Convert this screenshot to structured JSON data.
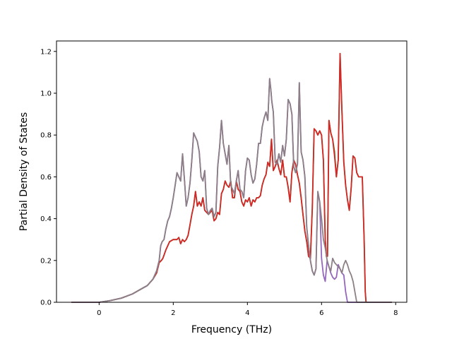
{
  "chart_data": {
    "type": "line",
    "title": "",
    "xlabel": "Frequency (THz)",
    "ylabel": "Partial Density of States",
    "xlim": [
      -1.15,
      8.3
    ],
    "ylim": [
      0.0,
      1.25
    ],
    "xticks": [
      0,
      2,
      4,
      6,
      8
    ],
    "yticks": [
      0.0,
      0.2,
      0.4,
      0.6,
      0.8,
      1.0,
      1.2
    ],
    "xtick_labels": [
      "0",
      "2",
      "4",
      "6",
      "8"
    ],
    "ytick_labels": [
      "0.0",
      "0.2",
      "0.4",
      "0.6",
      "0.8",
      "1.0",
      "1.2"
    ],
    "grid": false,
    "legend": "none",
    "series": [
      {
        "color": "#2ca02c",
        "x": [
          -0.75,
          0.0,
          0.3,
          0.6,
          0.9,
          1.1,
          1.3,
          1.45,
          1.55,
          1.62,
          1.68,
          1.72,
          1.76,
          1.8,
          1.9,
          2.0,
          2.1,
          2.15,
          2.2,
          2.25,
          2.3,
          2.35,
          2.4,
          2.45,
          2.5,
          2.55,
          2.6,
          2.65,
          2.7,
          2.75,
          2.8,
          2.85,
          2.9,
          2.95,
          3.0,
          3.05,
          3.1,
          3.15,
          3.2,
          3.25,
          3.3,
          3.35,
          3.4,
          3.45,
          3.5,
          3.55,
          3.6,
          3.65,
          3.7,
          3.75,
          3.8,
          3.85,
          3.9,
          3.95,
          4.0,
          4.05,
          4.1,
          4.15,
          4.2,
          4.25,
          4.3,
          4.35,
          4.4,
          4.45,
          4.5,
          4.55,
          4.6,
          4.65,
          4.7,
          4.75,
          4.8,
          4.85,
          4.9,
          4.95,
          5.0,
          5.05,
          5.1,
          5.15,
          5.2,
          5.25,
          5.3,
          5.35,
          5.4,
          5.45,
          5.5,
          5.55,
          5.6,
          5.65,
          5.7,
          5.75,
          5.8,
          5.85,
          5.9,
          5.95,
          6.0,
          6.05,
          6.1,
          6.13,
          6.16,
          6.2,
          6.25,
          6.3,
          6.35,
          6.4,
          6.45,
          6.5,
          6.55,
          6.6,
          6.65,
          6.7,
          6.75,
          6.8,
          6.85,
          6.9,
          6.95,
          7.0,
          7.05,
          7.1,
          7.15,
          7.18,
          7.2,
          7.25,
          7.5,
          7.9
        ],
        "y": [
          0.0,
          0.0,
          0.008,
          0.02,
          0.04,
          0.06,
          0.08,
          0.11,
          0.14,
          0.19,
          0.2,
          0.21,
          0.23,
          0.25,
          0.29,
          0.3,
          0.3,
          0.31,
          0.28,
          0.3,
          0.29,
          0.3,
          0.32,
          0.37,
          0.42,
          0.46,
          0.53,
          0.46,
          0.48,
          0.46,
          0.5,
          0.44,
          0.43,
          0.42,
          0.43,
          0.44,
          0.39,
          0.4,
          0.43,
          0.42,
          0.52,
          0.54,
          0.58,
          0.56,
          0.55,
          0.58,
          0.5,
          0.5,
          0.58,
          0.54,
          0.53,
          0.48,
          0.46,
          0.49,
          0.48,
          0.5,
          0.46,
          0.49,
          0.48,
          0.5,
          0.5,
          0.51,
          0.56,
          0.59,
          0.61,
          0.67,
          0.65,
          0.78,
          0.63,
          0.65,
          0.68,
          0.64,
          0.61,
          0.68,
          0.6,
          0.6,
          0.55,
          0.48,
          0.62,
          0.68,
          0.66,
          0.61,
          0.57,
          0.5,
          0.42,
          0.34,
          0.29,
          0.22,
          0.21,
          0.45,
          0.83,
          0.82,
          0.8,
          0.82,
          0.8,
          0.68,
          0.3,
          0.22,
          0.22,
          0.87,
          0.81,
          0.78,
          0.72,
          0.6,
          0.68,
          1.19,
          0.92,
          0.67,
          0.56,
          0.49,
          0.44,
          0.55,
          0.7,
          0.69,
          0.62,
          0.6,
          0.6,
          0.6,
          0.3,
          0.05,
          0.0,
          0.0,
          0.0,
          0.0
        ]
      },
      {
        "color": "#d62728",
        "x": [
          -0.75,
          0.0,
          0.3,
          0.6,
          0.9,
          1.1,
          1.3,
          1.45,
          1.55,
          1.62,
          1.68,
          1.72,
          1.76,
          1.8,
          1.9,
          2.0,
          2.1,
          2.15,
          2.2,
          2.25,
          2.3,
          2.35,
          2.4,
          2.45,
          2.5,
          2.55,
          2.6,
          2.65,
          2.7,
          2.75,
          2.8,
          2.85,
          2.9,
          2.95,
          3.0,
          3.05,
          3.1,
          3.15,
          3.2,
          3.25,
          3.3,
          3.35,
          3.4,
          3.45,
          3.5,
          3.55,
          3.6,
          3.65,
          3.7,
          3.75,
          3.8,
          3.85,
          3.9,
          3.95,
          4.0,
          4.05,
          4.1,
          4.15,
          4.2,
          4.25,
          4.3,
          4.35,
          4.4,
          4.45,
          4.5,
          4.55,
          4.6,
          4.65,
          4.7,
          4.75,
          4.8,
          4.85,
          4.9,
          4.95,
          5.0,
          5.05,
          5.1,
          5.15,
          5.2,
          5.25,
          5.3,
          5.35,
          5.4,
          5.45,
          5.5,
          5.55,
          5.6,
          5.65,
          5.7,
          5.75,
          5.8,
          5.85,
          5.9,
          5.95,
          6.0,
          6.05,
          6.1,
          6.13,
          6.16,
          6.2,
          6.25,
          6.3,
          6.35,
          6.4,
          6.45,
          6.5,
          6.55,
          6.6,
          6.65,
          6.7,
          6.75,
          6.8,
          6.85,
          6.9,
          6.95,
          7.0,
          7.05,
          7.1,
          7.15,
          7.18,
          7.2,
          7.25,
          7.5,
          7.9
        ],
        "y": [
          0.0,
          0.0,
          0.008,
          0.02,
          0.04,
          0.06,
          0.08,
          0.11,
          0.14,
          0.19,
          0.2,
          0.21,
          0.23,
          0.25,
          0.29,
          0.3,
          0.3,
          0.31,
          0.28,
          0.3,
          0.29,
          0.3,
          0.32,
          0.37,
          0.42,
          0.46,
          0.53,
          0.46,
          0.48,
          0.46,
          0.5,
          0.44,
          0.43,
          0.42,
          0.43,
          0.44,
          0.39,
          0.4,
          0.43,
          0.42,
          0.52,
          0.54,
          0.58,
          0.56,
          0.55,
          0.58,
          0.5,
          0.5,
          0.58,
          0.54,
          0.53,
          0.48,
          0.46,
          0.49,
          0.48,
          0.5,
          0.46,
          0.49,
          0.48,
          0.5,
          0.5,
          0.51,
          0.56,
          0.59,
          0.61,
          0.67,
          0.65,
          0.78,
          0.63,
          0.65,
          0.68,
          0.64,
          0.61,
          0.68,
          0.6,
          0.6,
          0.55,
          0.48,
          0.62,
          0.68,
          0.66,
          0.61,
          0.57,
          0.5,
          0.42,
          0.34,
          0.29,
          0.22,
          0.21,
          0.45,
          0.83,
          0.82,
          0.8,
          0.82,
          0.8,
          0.68,
          0.3,
          0.22,
          0.22,
          0.87,
          0.81,
          0.78,
          0.7,
          0.6,
          0.68,
          1.19,
          0.92,
          0.67,
          0.56,
          0.49,
          0.44,
          0.55,
          0.7,
          0.69,
          0.62,
          0.6,
          0.6,
          0.6,
          0.3,
          0.05,
          0.0,
          0.0,
          0.0,
          0.0
        ]
      },
      {
        "color": "#9467bd",
        "x": [
          -0.75,
          0.0,
          0.3,
          0.6,
          0.9,
          1.1,
          1.3,
          1.45,
          1.55,
          1.62,
          1.66,
          1.7,
          1.75,
          1.8,
          1.85,
          1.9,
          1.95,
          2.0,
          2.05,
          2.1,
          2.15,
          2.2,
          2.25,
          2.3,
          2.35,
          2.4,
          2.45,
          2.5,
          2.55,
          2.6,
          2.65,
          2.7,
          2.75,
          2.8,
          2.85,
          2.9,
          2.95,
          3.0,
          3.05,
          3.1,
          3.15,
          3.2,
          3.25,
          3.3,
          3.35,
          3.4,
          3.45,
          3.5,
          3.55,
          3.6,
          3.65,
          3.7,
          3.75,
          3.8,
          3.85,
          3.9,
          3.95,
          4.0,
          4.05,
          4.1,
          4.15,
          4.2,
          4.25,
          4.3,
          4.35,
          4.4,
          4.45,
          4.5,
          4.55,
          4.6,
          4.63,
          4.66,
          4.7,
          4.75,
          4.8,
          4.85,
          4.9,
          4.95,
          5.0,
          5.05,
          5.1,
          5.15,
          5.2,
          5.25,
          5.3,
          5.35,
          5.4,
          5.45,
          5.5,
          5.55,
          5.6,
          5.65,
          5.7,
          5.75,
          5.8,
          5.85,
          5.9,
          5.95,
          6.0,
          6.05,
          6.1,
          6.15,
          6.2,
          6.25,
          6.3,
          6.35,
          6.4,
          6.45,
          6.5,
          6.55,
          6.6,
          6.65,
          6.7,
          6.75,
          6.8,
          6.85,
          6.9,
          6.95,
          7.0,
          7.05,
          7.1,
          7.13,
          7.16,
          7.2,
          7.5,
          7.9
        ],
        "y": [
          0.0,
          0.0,
          0.008,
          0.02,
          0.04,
          0.06,
          0.08,
          0.11,
          0.15,
          0.2,
          0.27,
          0.29,
          0.3,
          0.35,
          0.39,
          0.41,
          0.45,
          0.5,
          0.56,
          0.62,
          0.6,
          0.58,
          0.71,
          0.59,
          0.46,
          0.5,
          0.57,
          0.68,
          0.81,
          0.79,
          0.77,
          0.72,
          0.6,
          0.58,
          0.63,
          0.45,
          0.42,
          0.44,
          0.45,
          0.41,
          0.43,
          0.65,
          0.74,
          0.87,
          0.76,
          0.71,
          0.66,
          0.75,
          0.56,
          0.54,
          0.52,
          0.58,
          0.63,
          0.54,
          0.53,
          0.5,
          0.63,
          0.69,
          0.68,
          0.61,
          0.57,
          0.59,
          0.66,
          0.76,
          0.76,
          0.84,
          0.88,
          0.91,
          0.87,
          1.07,
          1.02,
          0.96,
          0.91,
          0.67,
          0.66,
          0.71,
          0.67,
          0.75,
          0.7,
          0.78,
          0.97,
          0.95,
          0.9,
          0.65,
          0.62,
          0.66,
          1.05,
          0.72,
          0.68,
          0.6,
          0.36,
          0.27,
          0.2,
          0.15,
          0.13,
          0.16,
          0.53,
          0.48,
          0.21,
          0.13,
          0.1,
          0.2,
          0.17,
          0.14,
          0.12,
          0.11,
          0.12,
          0.18,
          0.16,
          0.14,
          0.13,
          0.05,
          0.0,
          0.0,
          0.0,
          0.0,
          0.0,
          0.0,
          0.0,
          0.0,
          0.0,
          0.0,
          0.0,
          0.0,
          0.0,
          0.0
        ]
      },
      {
        "color": "#8c7f85",
        "x": [
          -0.75,
          0.0,
          0.3,
          0.6,
          0.9,
          1.1,
          1.3,
          1.45,
          1.55,
          1.62,
          1.66,
          1.7,
          1.75,
          1.8,
          1.85,
          1.9,
          1.95,
          2.0,
          2.05,
          2.1,
          2.15,
          2.2,
          2.25,
          2.3,
          2.35,
          2.4,
          2.45,
          2.5,
          2.55,
          2.6,
          2.65,
          2.7,
          2.75,
          2.8,
          2.85,
          2.9,
          2.95,
          3.0,
          3.05,
          3.1,
          3.15,
          3.2,
          3.25,
          3.3,
          3.35,
          3.4,
          3.45,
          3.5,
          3.55,
          3.6,
          3.65,
          3.7,
          3.75,
          3.8,
          3.85,
          3.9,
          3.95,
          4.0,
          4.05,
          4.1,
          4.15,
          4.2,
          4.25,
          4.3,
          4.35,
          4.4,
          4.45,
          4.5,
          4.55,
          4.6,
          4.63,
          4.66,
          4.7,
          4.75,
          4.8,
          4.85,
          4.9,
          4.95,
          5.0,
          5.05,
          5.1,
          5.15,
          5.2,
          5.25,
          5.3,
          5.35,
          5.4,
          5.45,
          5.5,
          5.55,
          5.6,
          5.65,
          5.7,
          5.75,
          5.8,
          5.85,
          5.9,
          5.95,
          6.0,
          6.05,
          6.1,
          6.15,
          6.2,
          6.25,
          6.3,
          6.35,
          6.4,
          6.45,
          6.5,
          6.55,
          6.6,
          6.65,
          6.7,
          6.75,
          6.8,
          6.85,
          6.9,
          6.95,
          7.0,
          7.05,
          7.1,
          7.13,
          7.16,
          7.2,
          7.5,
          7.9
        ],
        "y": [
          0.0,
          0.0,
          0.008,
          0.02,
          0.04,
          0.06,
          0.08,
          0.11,
          0.15,
          0.2,
          0.27,
          0.29,
          0.3,
          0.35,
          0.39,
          0.41,
          0.45,
          0.5,
          0.56,
          0.62,
          0.6,
          0.58,
          0.71,
          0.59,
          0.46,
          0.5,
          0.57,
          0.68,
          0.81,
          0.79,
          0.77,
          0.72,
          0.6,
          0.58,
          0.63,
          0.45,
          0.42,
          0.44,
          0.45,
          0.41,
          0.43,
          0.65,
          0.74,
          0.87,
          0.76,
          0.71,
          0.66,
          0.75,
          0.56,
          0.54,
          0.52,
          0.58,
          0.63,
          0.54,
          0.53,
          0.5,
          0.63,
          0.69,
          0.68,
          0.61,
          0.57,
          0.59,
          0.66,
          0.76,
          0.76,
          0.84,
          0.88,
          0.91,
          0.87,
          1.07,
          1.02,
          0.96,
          0.91,
          0.67,
          0.66,
          0.71,
          0.67,
          0.75,
          0.7,
          0.78,
          0.97,
          0.95,
          0.9,
          0.65,
          0.62,
          0.66,
          1.05,
          0.72,
          0.68,
          0.6,
          0.36,
          0.27,
          0.2,
          0.15,
          0.13,
          0.16,
          0.53,
          0.48,
          0.4,
          0.3,
          0.26,
          0.2,
          0.17,
          0.15,
          0.21,
          0.19,
          0.18,
          0.17,
          0.16,
          0.14,
          0.18,
          0.2,
          0.18,
          0.15,
          0.13,
          0.1,
          0.05,
          0.0,
          0.0,
          0.0,
          0.0,
          0.0,
          0.0,
          0.0,
          0.0,
          0.0
        ]
      }
    ]
  }
}
